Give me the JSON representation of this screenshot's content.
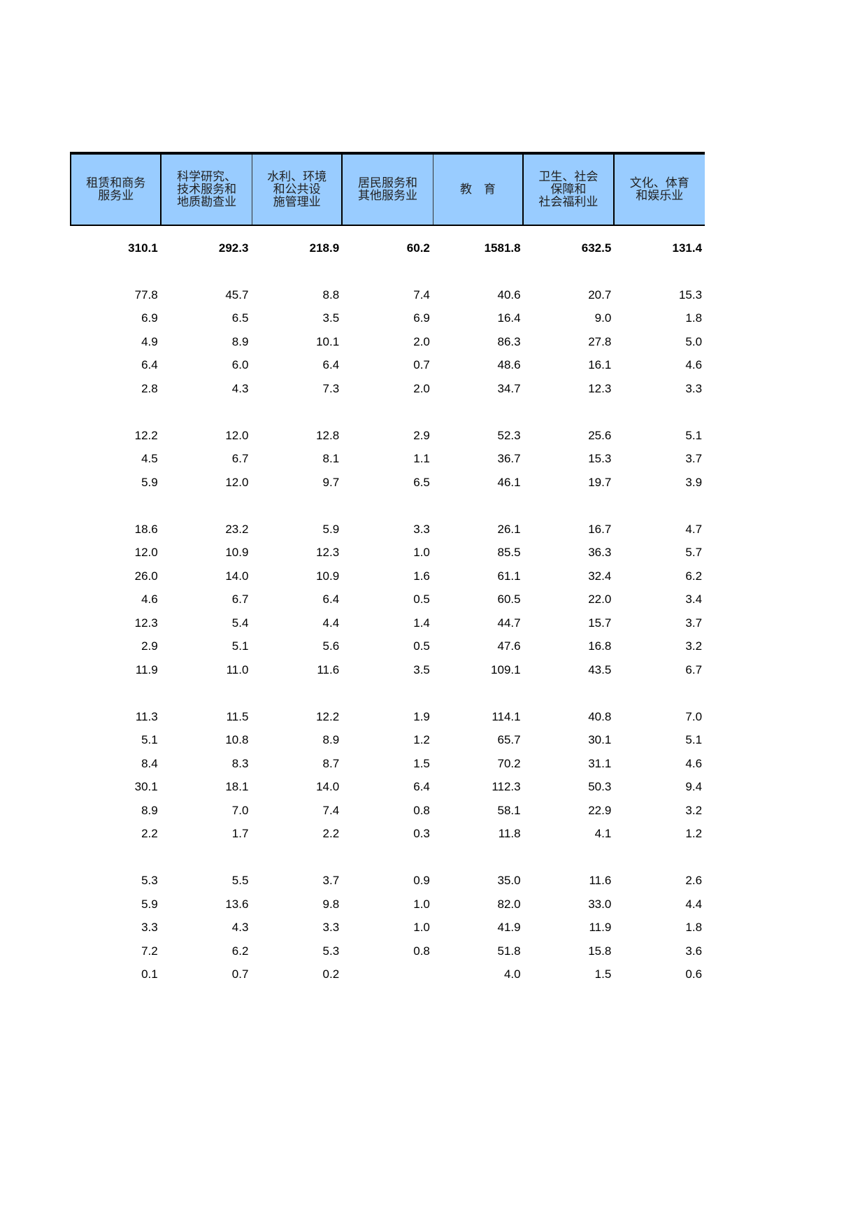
{
  "headers": [
    "租赁和商务\n服务业",
    "科学研究、\n技术服务和\n地质勘查业",
    "水利、环境\n和公共设\n施管理业",
    "居民服务和\n其他服务业",
    "教　育",
    "卫生、社会\n保障和\n社会福利业",
    "文化、体育\n和娱乐业"
  ],
  "rows": [
    [
      "310.1",
      "292.3",
      "218.9",
      "60.2",
      "1581.8",
      "632.5",
      "131.4"
    ],
    null,
    [
      "77.8",
      "45.7",
      "8.8",
      "7.4",
      "40.6",
      "20.7",
      "15.3"
    ],
    [
      "6.9",
      "6.5",
      "3.5",
      "6.9",
      "16.4",
      "9.0",
      "1.8"
    ],
    [
      "4.9",
      "8.9",
      "10.1",
      "2.0",
      "86.3",
      "27.8",
      "5.0"
    ],
    [
      "6.4",
      "6.0",
      "6.4",
      "0.7",
      "48.6",
      "16.1",
      "4.6"
    ],
    [
      "2.8",
      "4.3",
      "7.3",
      "2.0",
      "34.7",
      "12.3",
      "3.3"
    ],
    null,
    [
      "12.2",
      "12.0",
      "12.8",
      "2.9",
      "52.3",
      "25.6",
      "5.1"
    ],
    [
      "4.5",
      "6.7",
      "8.1",
      "1.1",
      "36.7",
      "15.3",
      "3.7"
    ],
    [
      "5.9",
      "12.0",
      "9.7",
      "6.5",
      "46.1",
      "19.7",
      "3.9"
    ],
    null,
    [
      "18.6",
      "23.2",
      "5.9",
      "3.3",
      "26.1",
      "16.7",
      "4.7"
    ],
    [
      "12.0",
      "10.9",
      "12.3",
      "1.0",
      "85.5",
      "36.3",
      "5.7"
    ],
    [
      "26.0",
      "14.0",
      "10.9",
      "1.6",
      "61.1",
      "32.4",
      "6.2"
    ],
    [
      "4.6",
      "6.7",
      "6.4",
      "0.5",
      "60.5",
      "22.0",
      "3.4"
    ],
    [
      "12.3",
      "5.4",
      "4.4",
      "1.4",
      "44.7",
      "15.7",
      "3.7"
    ],
    [
      "2.9",
      "5.1",
      "5.6",
      "0.5",
      "47.6",
      "16.8",
      "3.2"
    ],
    [
      "11.9",
      "11.0",
      "11.6",
      "3.5",
      "109.1",
      "43.5",
      "6.7"
    ],
    null,
    [
      "11.3",
      "11.5",
      "12.2",
      "1.9",
      "114.1",
      "40.8",
      "7.0"
    ],
    [
      "5.1",
      "10.8",
      "8.9",
      "1.2",
      "65.7",
      "30.1",
      "5.1"
    ],
    [
      "8.4",
      "8.3",
      "8.7",
      "1.5",
      "70.2",
      "31.1",
      "4.6"
    ],
    [
      "30.1",
      "18.1",
      "14.0",
      "6.4",
      "112.3",
      "50.3",
      "9.4"
    ],
    [
      "8.9",
      "7.0",
      "7.4",
      "0.8",
      "58.1",
      "22.9",
      "3.2"
    ],
    [
      "2.2",
      "1.7",
      "2.2",
      "0.3",
      "11.8",
      "4.1",
      "1.2"
    ],
    null,
    [
      "5.3",
      "5.5",
      "3.7",
      "0.9",
      "35.0",
      "11.6",
      "2.6"
    ],
    [
      "5.9",
      "13.6",
      "9.8",
      "1.0",
      "82.0",
      "33.0",
      "4.4"
    ],
    [
      "3.3",
      "4.3",
      "3.3",
      "1.0",
      "41.9",
      "11.9",
      "1.8"
    ],
    [
      "7.2",
      "6.2",
      "5.3",
      "0.8",
      "51.8",
      "15.8",
      "3.6"
    ],
    [
      "0.1",
      "0.7",
      "0.2",
      "",
      "4.0",
      "1.5",
      "0.6"
    ]
  ],
  "colors": {
    "header_bg": "#99ccff"
  }
}
